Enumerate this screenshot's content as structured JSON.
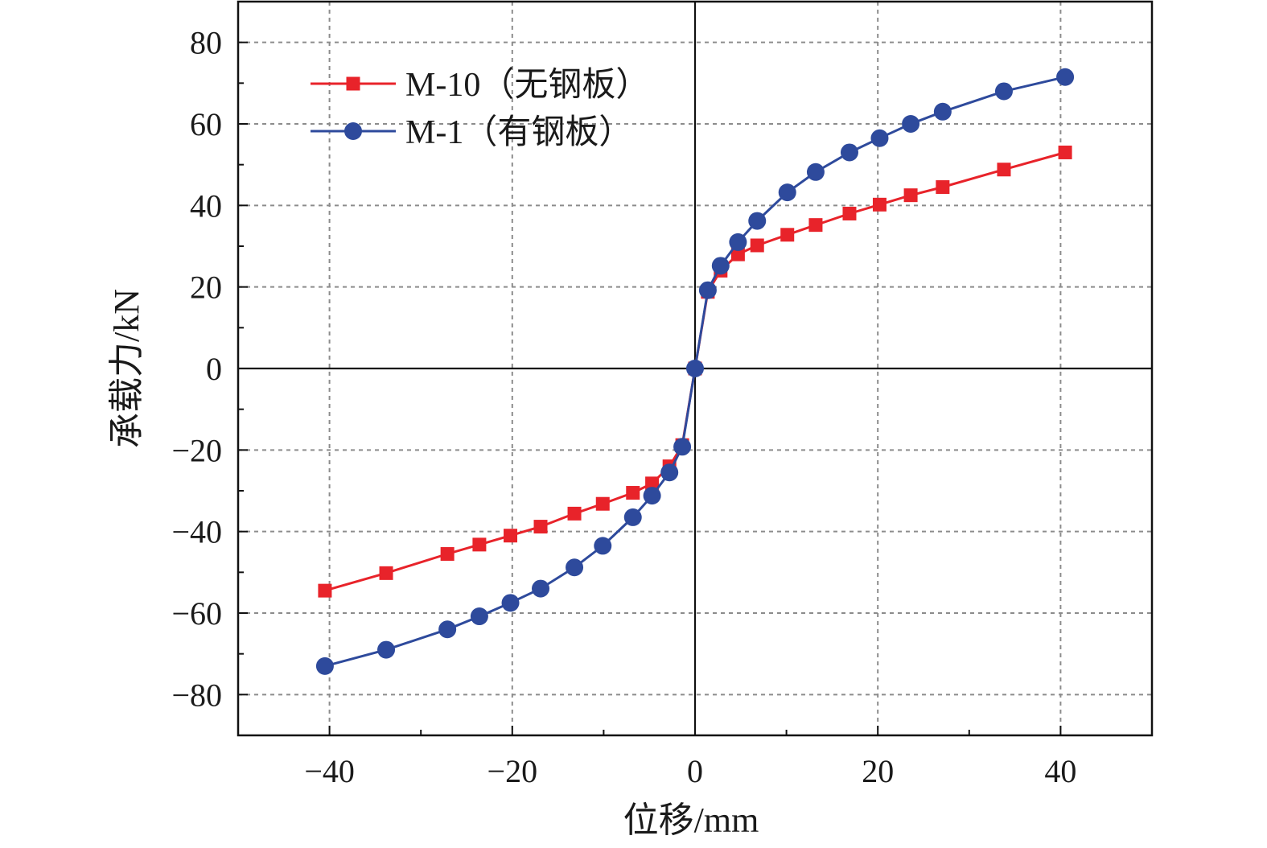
{
  "chart_data": {
    "type": "line",
    "xlabel": "位移/mm",
    "ylabel": "承载力/kN",
    "xlim": [
      -50,
      50
    ],
    "ylim": [
      -90,
      90
    ],
    "xticks": [
      -40,
      -20,
      0,
      20,
      40
    ],
    "yticks": [
      -80,
      -60,
      -40,
      -20,
      0,
      20,
      40,
      60,
      80
    ],
    "xtick_labels": [
      "−40",
      "−20",
      "0",
      "20",
      "40"
    ],
    "ytick_labels": [
      "−80",
      "−60",
      "−40",
      "−20",
      "0",
      "20",
      "40",
      "60",
      "80"
    ],
    "grid": true,
    "legend_position": "top-left",
    "series": [
      {
        "name": "M-10（无钢板）",
        "color": "#e8232a",
        "marker": "square",
        "x": [
          -40.5,
          -33.8,
          -27.1,
          -23.6,
          -20.2,
          -16.9,
          -13.2,
          -10.1,
          -6.8,
          -4.7,
          -2.8,
          -1.4,
          0,
          1.4,
          2.8,
          4.7,
          6.8,
          10.1,
          13.2,
          16.9,
          20.2,
          23.6,
          27.1,
          33.8,
          40.5
        ],
        "y": [
          -54.5,
          -50.2,
          -45.5,
          -43.2,
          -41.0,
          -38.8,
          -35.6,
          -33.2,
          -30.5,
          -28.2,
          -24.0,
          -18.8,
          0,
          18.8,
          24.0,
          28.0,
          30.2,
          32.8,
          35.2,
          38.0,
          40.2,
          42.5,
          44.5,
          48.8,
          53.0
        ]
      },
      {
        "name": "M-1（有钢板）",
        "color": "#2e4a9c",
        "marker": "circle",
        "x": [
          -40.5,
          -33.8,
          -27.1,
          -23.6,
          -20.2,
          -16.9,
          -13.2,
          -10.1,
          -6.8,
          -4.7,
          -2.8,
          -1.4,
          0,
          1.4,
          2.8,
          4.7,
          6.8,
          10.1,
          13.2,
          16.9,
          20.2,
          23.6,
          27.1,
          33.8,
          40.5
        ],
        "y": [
          -73.0,
          -69.0,
          -64.0,
          -60.8,
          -57.5,
          -54.0,
          -48.8,
          -43.5,
          -36.5,
          -31.2,
          -25.5,
          -19.2,
          0,
          19.2,
          25.2,
          31.0,
          36.2,
          43.2,
          48.2,
          53.0,
          56.5,
          60.0,
          63.0,
          68.0,
          71.5
        ]
      }
    ]
  }
}
